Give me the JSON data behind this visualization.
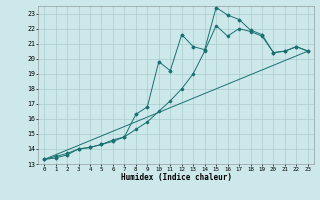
{
  "title": "",
  "xlabel": "Humidex (Indice chaleur)",
  "bg_color": "#cce8ea",
  "grid_color": "#aacccc",
  "line_color": "#1a7070",
  "xlim": [
    -0.5,
    23.5
  ],
  "ylim": [
    13.0,
    23.5
  ],
  "yticks": [
    13,
    14,
    15,
    16,
    17,
    18,
    19,
    20,
    21,
    22,
    23
  ],
  "xticks": [
    0,
    1,
    2,
    3,
    4,
    5,
    6,
    7,
    8,
    9,
    10,
    11,
    12,
    13,
    14,
    15,
    16,
    17,
    18,
    19,
    20,
    21,
    22,
    23
  ],
  "line1_x": [
    0,
    1,
    2,
    3,
    4,
    5,
    6,
    7,
    8,
    9,
    10,
    11,
    12,
    13,
    14,
    15,
    16,
    17,
    18,
    19,
    20,
    21,
    22,
    23
  ],
  "line1_y": [
    13.3,
    13.4,
    13.6,
    14.0,
    14.1,
    14.3,
    14.5,
    14.8,
    16.3,
    16.8,
    19.8,
    19.2,
    21.6,
    20.8,
    20.6,
    23.4,
    22.9,
    22.6,
    21.9,
    21.6,
    20.4,
    20.5,
    20.8,
    20.5
  ],
  "line2_x": [
    0,
    1,
    2,
    3,
    4,
    5,
    6,
    7,
    8,
    9,
    10,
    11,
    12,
    13,
    14,
    15,
    16,
    17,
    18,
    19,
    20,
    21,
    22,
    23
  ],
  "line2_y": [
    13.3,
    13.5,
    13.7,
    14.0,
    14.1,
    14.3,
    14.6,
    14.8,
    15.3,
    15.8,
    16.5,
    17.2,
    18.0,
    19.0,
    20.5,
    22.2,
    21.5,
    22.0,
    21.8,
    21.5,
    20.4,
    20.5,
    20.8,
    20.5
  ],
  "line3_x": [
    0,
    23
  ],
  "line3_y": [
    13.3,
    20.5
  ]
}
